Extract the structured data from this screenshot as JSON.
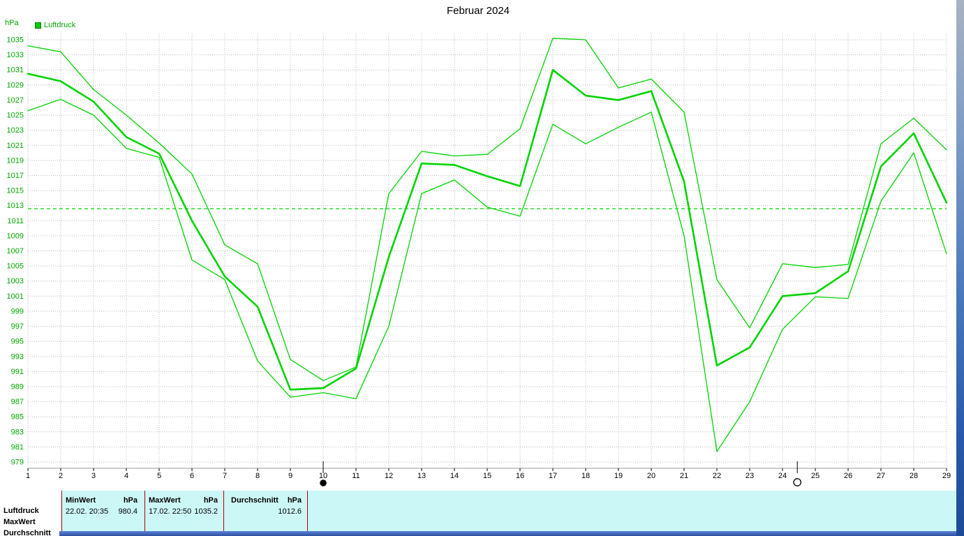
{
  "window": {
    "title": "Februar 2024"
  },
  "chart": {
    "y_unit": "hPa",
    "legend_label": "Luftdruck",
    "line_color": "#00d400",
    "label_color": "#00a800",
    "grid_color": "#b9b9b9",
    "panel_color": "#ccf7f7"
  },
  "chart_data": {
    "type": "line",
    "title": "Februar 2024",
    "xlabel": "",
    "ylabel": "hPa",
    "ylim": [
      979,
      1035
    ],
    "grid": true,
    "legend_position": "top-left",
    "y_ticks": [
      979,
      981,
      983,
      985,
      987,
      989,
      991,
      993,
      995,
      997,
      999,
      1001,
      1003,
      1005,
      1007,
      1009,
      1011,
      1013,
      1015,
      1017,
      1019,
      1021,
      1023,
      1025,
      1027,
      1029,
      1031,
      1033,
      1035
    ],
    "x_ticks": [
      1,
      2,
      3,
      4,
      5,
      6,
      7,
      8,
      9,
      10,
      11,
      12,
      13,
      14,
      15,
      16,
      17,
      18,
      19,
      20,
      21,
      22,
      23,
      24,
      25,
      26,
      27,
      28,
      29
    ],
    "average_line": 1012.6,
    "series": [
      {
        "name": "MaxWert",
        "width": 1.3,
        "values": [
          1034.2,
          1033.4,
          1028.4,
          1025.0,
          1021.3,
          1017.2,
          1007.8,
          1005.3,
          992.6,
          989.8,
          991.6,
          1014.6,
          1020.2,
          1019.6,
          1019.8,
          1023.2,
          1035.2,
          1035.0,
          1028.6,
          1029.8,
          1025.4,
          1003.2,
          996.8,
          1005.3,
          1004.8,
          1005.2,
          1021.2,
          1024.6,
          1020.4
        ]
      },
      {
        "name": "Luftdruck",
        "width": 2.6,
        "values": [
          1030.5,
          1029.5,
          1026.8,
          1022.1,
          1019.9,
          1011.0,
          1003.6,
          999.6,
          988.6,
          988.8,
          991.4,
          1006.2,
          1018.6,
          1018.4,
          1016.9,
          1015.6,
          1031.0,
          1027.6,
          1027.0,
          1028.2,
          1016.2,
          991.8,
          994.2,
          1001.0,
          1001.4,
          1004.3,
          1018.2,
          1022.6,
          1013.4
        ]
      },
      {
        "name": "MinWert",
        "width": 1.3,
        "values": [
          1025.6,
          1027.1,
          1025.0,
          1020.6,
          1019.4,
          1005.8,
          1003.2,
          992.4,
          987.6,
          988.2,
          987.4,
          997.0,
          1014.6,
          1016.4,
          1012.8,
          1011.6,
          1023.8,
          1021.2,
          1023.4,
          1025.4,
          1009.0,
          980.4,
          987.0,
          996.6,
          1000.9,
          1000.7,
          1013.6,
          1020.0,
          1006.6
        ]
      }
    ],
    "markers": [
      {
        "type": "new-moon",
        "day": 10
      },
      {
        "type": "full-moon",
        "day": 24.45
      }
    ]
  },
  "stats": {
    "row_labels": [
      "Luftdruck",
      "MaxWert",
      "Durchschnitt"
    ],
    "min": {
      "header": "MinWert",
      "unit": "hPa",
      "datetime": "22.02.  20:35",
      "value": "980.4"
    },
    "max": {
      "header": "MaxWert",
      "unit": "hPa",
      "datetime": "17.02.  22:50",
      "value": "1035.2"
    },
    "avg": {
      "header": "Durchschnitt",
      "unit": "hPa",
      "value": "1012.6"
    }
  }
}
